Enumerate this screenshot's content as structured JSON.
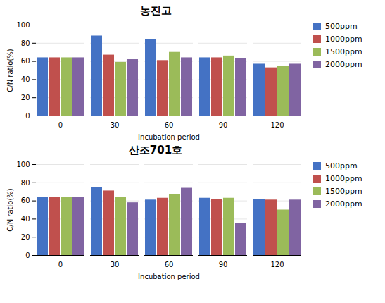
{
  "chart_data": [
    {
      "type": "bar",
      "title": "농진고",
      "categories": [
        0,
        30,
        60,
        90,
        120
      ],
      "series": [
        {
          "name": "500ppm",
          "color": "#4472C4",
          "values": [
            64,
            88,
            84,
            64,
            57
          ]
        },
        {
          "name": "1000ppm",
          "color": "#C0504D",
          "values": [
            64,
            67,
            61,
            64,
            53
          ]
        },
        {
          "name": "1500ppm",
          "color": "#9BBB59",
          "values": [
            64,
            59,
            70,
            66,
            55
          ]
        },
        {
          "name": "2000ppm",
          "color": "#8064A2",
          "values": [
            64,
            62,
            64,
            63,
            57
          ]
        }
      ],
      "xlabel": "Incubation period",
      "ylabel": "C/N ratio(%)",
      "ylim": [
        0,
        100
      ],
      "yticks": [
        0,
        20,
        40,
        60,
        80,
        100
      ],
      "grid": true,
      "legend": "right"
    },
    {
      "type": "bar",
      "title": "산조701호",
      "categories": [
        0,
        30,
        60,
        90,
        120
      ],
      "series": [
        {
          "name": "500ppm",
          "color": "#4472C4",
          "values": [
            64,
            75,
            61,
            63,
            62
          ]
        },
        {
          "name": "1000ppm",
          "color": "#C0504D",
          "values": [
            64,
            71,
            63,
            62,
            61
          ]
        },
        {
          "name": "1500ppm",
          "color": "#9BBB59",
          "values": [
            64,
            64,
            67,
            63,
            50
          ]
        },
        {
          "name": "2000ppm",
          "color": "#8064A2",
          "values": [
            64,
            58,
            74,
            35,
            61
          ]
        }
      ],
      "xlabel": "Incubation period",
      "ylabel": "C/N ratio(%)",
      "ylim": [
        0,
        100
      ],
      "yticks": [
        0,
        20,
        40,
        60,
        80,
        100
      ],
      "grid": true,
      "legend": "right"
    }
  ]
}
